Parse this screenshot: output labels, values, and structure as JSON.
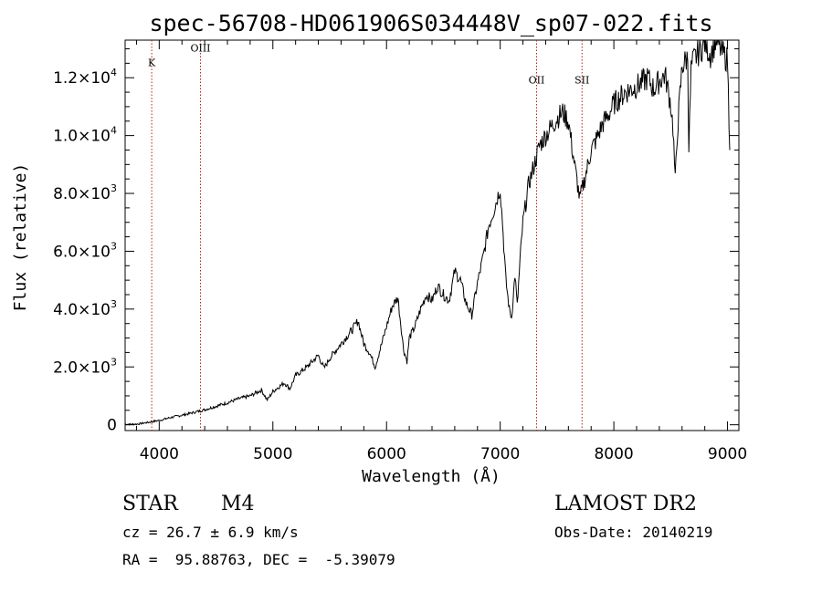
{
  "chart_data": {
    "type": "line",
    "title": "spec-56708-HD061906S034448V_sp07-022.fits",
    "xlabel": "Wavelength (Å)",
    "ylabel": "Flux (relative)",
    "xlim": [
      3700,
      9100
    ],
    "ylim": [
      -200,
      13300
    ],
    "grid": false,
    "x_ticks": [
      4000,
      5000,
      6000,
      7000,
      8000,
      9000
    ],
    "x_tick_labels": [
      "4000",
      "5000",
      "6000",
      "7000",
      "8000",
      "9000"
    ],
    "y_ticks": [
      {
        "value": 0,
        "mant": "0",
        "exp": ""
      },
      {
        "value": 2000,
        "mant": "2.0×10",
        "exp": "3"
      },
      {
        "value": 4000,
        "mant": "4.0×10",
        "exp": "3"
      },
      {
        "value": 6000,
        "mant": "6.0×10",
        "exp": "3"
      },
      {
        "value": 8000,
        "mant": "8.0×10",
        "exp": "3"
      },
      {
        "value": 10000,
        "mant": "1.0×10",
        "exp": "4"
      },
      {
        "value": 12000,
        "mant": "1.2×10",
        "exp": "4"
      }
    ],
    "spectral_lines": [
      {
        "label": "K",
        "x": 3934,
        "label_y": 12400,
        "color": "#b22222"
      },
      {
        "label": "OIII",
        "x": 4363,
        "label_y": 12900,
        "color": "#b22222"
      },
      {
        "label": "OII",
        "x": 7320,
        "label_y": 11800,
        "color": "#b22222"
      },
      {
        "label": "SII",
        "x": 7720,
        "label_y": 11800,
        "color": "#b22222"
      }
    ],
    "series": [
      {
        "x": [
          3700,
          3800,
          3900,
          4000,
          4100,
          4200,
          4300,
          4400,
          4500,
          4600,
          4700,
          4800,
          4900,
          4950,
          5000,
          5100,
          5150,
          5200,
          5300,
          5400,
          5450,
          5500,
          5600,
          5700,
          5750,
          5800,
          5850,
          5900,
          5950,
          6000,
          6050,
          6100,
          6150,
          6180,
          6200,
          6250,
          6300,
          6350,
          6400,
          6450,
          6500,
          6550,
          6600,
          6650,
          6700,
          6750,
          6800,
          6850,
          6900,
          6950,
          7000,
          7020,
          7050,
          7080,
          7100,
          7130,
          7150,
          7180,
          7200,
          7250,
          7300,
          7350,
          7400,
          7450,
          7500,
          7550,
          7600,
          7650,
          7700,
          7750,
          7800,
          7850,
          7900,
          7950,
          8000,
          8100,
          8200,
          8300,
          8350,
          8400,
          8450,
          8500,
          8520,
          8540,
          8560,
          8600,
          8650,
          8660,
          8680,
          8700,
          8750,
          8800,
          8850,
          8900,
          8950,
          9000,
          9020
        ],
        "y": [
          20,
          20,
          80,
          150,
          250,
          330,
          420,
          520,
          640,
          760,
          900,
          1000,
          1200,
          850,
          1150,
          1450,
          1250,
          1700,
          2000,
          2400,
          1950,
          2300,
          2800,
          3300,
          3600,
          2800,
          2500,
          2000,
          2700,
          3400,
          4100,
          4400,
          2600,
          2200,
          3000,
          3400,
          4000,
          4500,
          4300,
          4800,
          4500,
          4300,
          5300,
          5000,
          4200,
          3800,
          4900,
          5800,
          6900,
          7500,
          8200,
          7000,
          5000,
          4000,
          3700,
          5200,
          4100,
          6000,
          7000,
          8300,
          9000,
          9700,
          10000,
          10300,
          10600,
          10800,
          10500,
          9100,
          7800,
          8600,
          9500,
          9900,
          10400,
          10700,
          11100,
          11500,
          11700,
          12000,
          11600,
          11900,
          12100,
          11100,
          10300,
          8400,
          10200,
          12400,
          12700,
          9600,
          12300,
          12600,
          12900,
          13200,
          12800,
          13300,
          12900,
          12600,
          9500
        ]
      }
    ]
  },
  "info": {
    "object_type": "STAR",
    "subclass": "M4",
    "survey": "LAMOST DR2",
    "cz": "cz = 26.7 ± 6.9 km/s",
    "obs_date": "Obs-Date: 20140219",
    "coords": "RA =  95.88763, DEC =  -5.39079"
  }
}
